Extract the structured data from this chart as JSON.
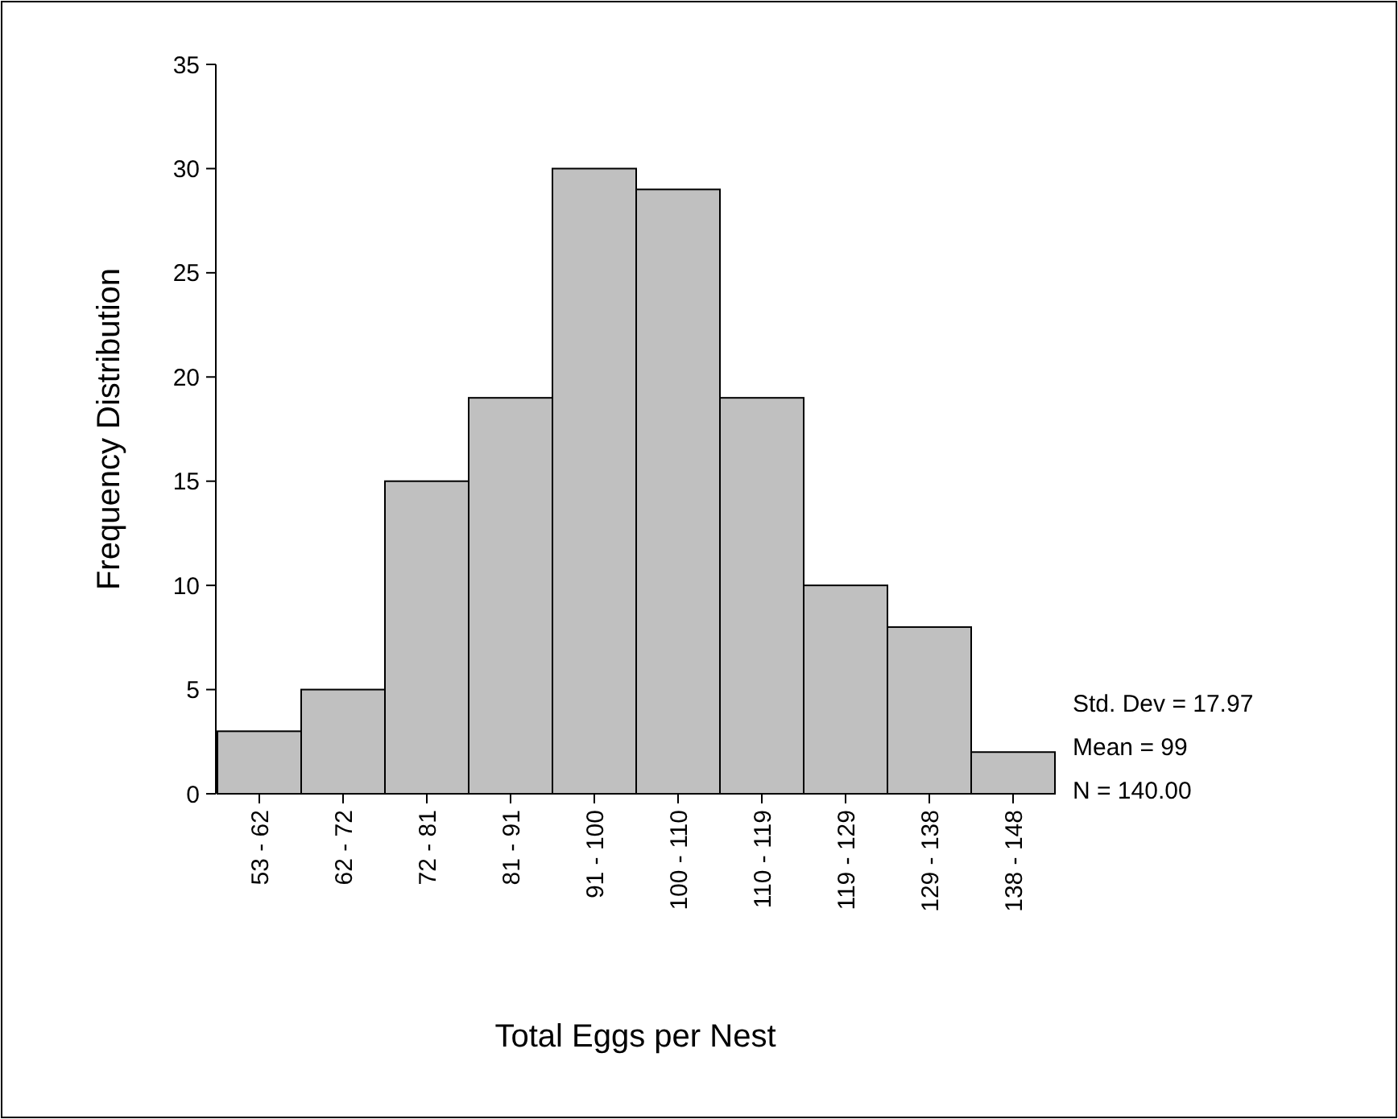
{
  "chart_data": {
    "type": "bar",
    "xlabel": "Total Eggs per Nest",
    "ylabel": "Frequency Distribution",
    "categories": [
      "53 - 62",
      "62 - 72",
      "72 - 81",
      "81 - 91",
      "91 - 100",
      "100 - 110",
      "110 - 119",
      "119 - 129",
      "129 - 138",
      "138 - 148"
    ],
    "values": [
      3,
      5,
      15,
      19,
      30,
      29,
      19,
      10,
      8,
      2
    ],
    "color": "#c0c0c0",
    "ylim": [
      0,
      35
    ],
    "yticks": [
      0,
      5,
      10,
      15,
      20,
      25,
      30,
      35
    ],
    "grid": false,
    "annotations": [
      "Std. Dev = 17.97",
      "Mean = 99",
      "N = 140.00"
    ]
  }
}
